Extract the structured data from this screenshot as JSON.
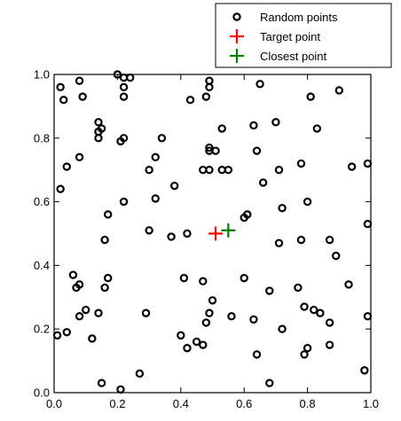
{
  "chart_data": {
    "type": "scatter",
    "title": "",
    "xlabel": "",
    "ylabel": "",
    "xlim": [
      0.0,
      1.0
    ],
    "ylim": [
      0.0,
      1.0
    ],
    "x_ticks": [
      "0.0",
      "0.2",
      "0.4",
      "0.6",
      "0.8",
      "1.0"
    ],
    "y_ticks": [
      "0.0",
      "0.2",
      "0.4",
      "0.6",
      "0.8",
      "1.0"
    ],
    "x_tick_values": [
      0.0,
      0.2,
      0.4,
      0.6,
      0.8,
      1.0
    ],
    "y_tick_values": [
      0.0,
      0.2,
      0.4,
      0.6,
      0.8,
      1.0
    ],
    "grid": false,
    "legend_position": "top-right",
    "series": [
      {
        "name": "Random points",
        "marker": "hollow-circle",
        "color": "#000000",
        "points": [
          [
            0.02,
            0.96
          ],
          [
            0.03,
            0.92
          ],
          [
            0.08,
            0.98
          ],
          [
            0.09,
            0.93
          ],
          [
            0.2,
            1.0
          ],
          [
            0.22,
            0.99
          ],
          [
            0.24,
            0.99
          ],
          [
            0.22,
            0.96
          ],
          [
            0.22,
            0.93
          ],
          [
            0.14,
            0.85
          ],
          [
            0.15,
            0.83
          ],
          [
            0.14,
            0.82
          ],
          [
            0.14,
            0.8
          ],
          [
            0.21,
            0.79
          ],
          [
            0.22,
            0.8
          ],
          [
            0.34,
            0.8
          ],
          [
            0.32,
            0.74
          ],
          [
            0.08,
            0.74
          ],
          [
            0.04,
            0.71
          ],
          [
            0.02,
            0.64
          ],
          [
            0.3,
            0.7
          ],
          [
            0.38,
            0.65
          ],
          [
            0.43,
            0.92
          ],
          [
            0.48,
            0.93
          ],
          [
            0.49,
            0.96
          ],
          [
            0.49,
            0.98
          ],
          [
            0.65,
            0.97
          ],
          [
            0.81,
            0.93
          ],
          [
            0.83,
            0.83
          ],
          [
            0.9,
            0.95
          ],
          [
            0.49,
            0.77
          ],
          [
            0.49,
            0.76
          ],
          [
            0.51,
            0.76
          ],
          [
            0.53,
            0.83
          ],
          [
            0.63,
            0.84
          ],
          [
            0.64,
            0.76
          ],
          [
            0.7,
            0.85
          ],
          [
            0.71,
            0.7
          ],
          [
            0.78,
            0.72
          ],
          [
            0.53,
            0.7
          ],
          [
            0.55,
            0.7
          ],
          [
            0.49,
            0.7
          ],
          [
            0.47,
            0.7
          ],
          [
            0.66,
            0.66
          ],
          [
            0.72,
            0.58
          ],
          [
            0.8,
            0.6
          ],
          [
            0.94,
            0.71
          ],
          [
            0.99,
            0.72
          ],
          [
            0.22,
            0.6
          ],
          [
            0.32,
            0.61
          ],
          [
            0.17,
            0.56
          ],
          [
            0.16,
            0.48
          ],
          [
            0.3,
            0.51
          ],
          [
            0.37,
            0.49
          ],
          [
            0.42,
            0.5
          ],
          [
            0.6,
            0.55
          ],
          [
            0.61,
            0.56
          ],
          [
            0.71,
            0.47
          ],
          [
            0.78,
            0.48
          ],
          [
            0.87,
            0.48
          ],
          [
            0.89,
            0.43
          ],
          [
            0.99,
            0.53
          ],
          [
            0.06,
            0.37
          ],
          [
            0.07,
            0.33
          ],
          [
            0.08,
            0.34
          ],
          [
            0.1,
            0.26
          ],
          [
            0.08,
            0.24
          ],
          [
            0.12,
            0.17
          ],
          [
            0.16,
            0.33
          ],
          [
            0.17,
            0.36
          ],
          [
            0.14,
            0.25
          ],
          [
            0.04,
            0.19
          ],
          [
            0.01,
            0.18
          ],
          [
            0.29,
            0.25
          ],
          [
            0.41,
            0.36
          ],
          [
            0.47,
            0.35
          ],
          [
            0.5,
            0.29
          ],
          [
            0.48,
            0.22
          ],
          [
            0.49,
            0.25
          ],
          [
            0.56,
            0.24
          ],
          [
            0.6,
            0.36
          ],
          [
            0.63,
            0.23
          ],
          [
            0.68,
            0.32
          ],
          [
            0.72,
            0.2
          ],
          [
            0.77,
            0.33
          ],
          [
            0.79,
            0.27
          ],
          [
            0.82,
            0.26
          ],
          [
            0.84,
            0.25
          ],
          [
            0.87,
            0.22
          ],
          [
            0.93,
            0.34
          ],
          [
            0.99,
            0.24
          ],
          [
            0.4,
            0.18
          ],
          [
            0.42,
            0.14
          ],
          [
            0.45,
            0.16
          ],
          [
            0.47,
            0.15
          ],
          [
            0.64,
            0.12
          ],
          [
            0.79,
            0.12
          ],
          [
            0.8,
            0.14
          ],
          [
            0.87,
            0.15
          ],
          [
            0.27,
            0.06
          ],
          [
            0.15,
            0.03
          ],
          [
            0.21,
            0.01
          ],
          [
            0.68,
            0.03
          ],
          [
            0.98,
            0.07
          ]
        ]
      },
      {
        "name": "Target point",
        "marker": "plus",
        "color": "#ff0000",
        "points": [
          [
            0.51,
            0.5
          ]
        ]
      },
      {
        "name": "Closest point",
        "marker": "plus",
        "color": "#008000",
        "points": [
          [
            0.55,
            0.51
          ]
        ]
      }
    ]
  }
}
